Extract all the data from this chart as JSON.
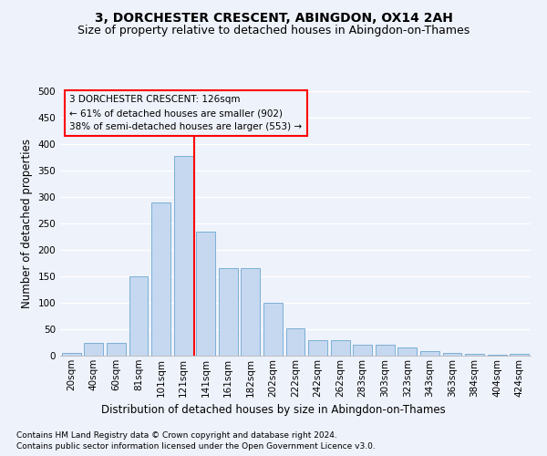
{
  "title": "3, DORCHESTER CRESCENT, ABINGDON, OX14 2AH",
  "subtitle": "Size of property relative to detached houses in Abingdon-on-Thames",
  "xlabel": "Distribution of detached houses by size in Abingdon-on-Thames",
  "ylabel": "Number of detached properties",
  "footnote1": "Contains HM Land Registry data © Crown copyright and database right 2024.",
  "footnote2": "Contains public sector information licensed under the Open Government Licence v3.0.",
  "bar_labels": [
    "20sqm",
    "40sqm",
    "60sqm",
    "81sqm",
    "101sqm",
    "121sqm",
    "141sqm",
    "161sqm",
    "182sqm",
    "202sqm",
    "222sqm",
    "242sqm",
    "262sqm",
    "283sqm",
    "303sqm",
    "323sqm",
    "343sqm",
    "363sqm",
    "384sqm",
    "404sqm",
    "424sqm"
  ],
  "bar_values": [
    5,
    25,
    25,
    150,
    290,
    378,
    235,
    165,
    165,
    100,
    52,
    30,
    30,
    20,
    20,
    15,
    8,
    5,
    3,
    2,
    3
  ],
  "bar_color": "#c5d8f0",
  "bar_edge_color": "#7bafd4",
  "reference_line_x": 5.5,
  "reference_line_label": "3 DORCHESTER CRESCENT: 126sqm",
  "annotation_line1": "← 61% of detached houses are smaller (902)",
  "annotation_line2": "38% of semi-detached houses are larger (553) →",
  "ylim": [
    0,
    500
  ],
  "yticks": [
    0,
    50,
    100,
    150,
    200,
    250,
    300,
    350,
    400,
    450,
    500
  ],
  "bg_color": "#eef2fb",
  "grid_color": "#ffffff",
  "title_fontsize": 10,
  "subtitle_fontsize": 9,
  "axis_label_fontsize": 8.5,
  "tick_fontsize": 7.5,
  "footnote_fontsize": 6.5
}
